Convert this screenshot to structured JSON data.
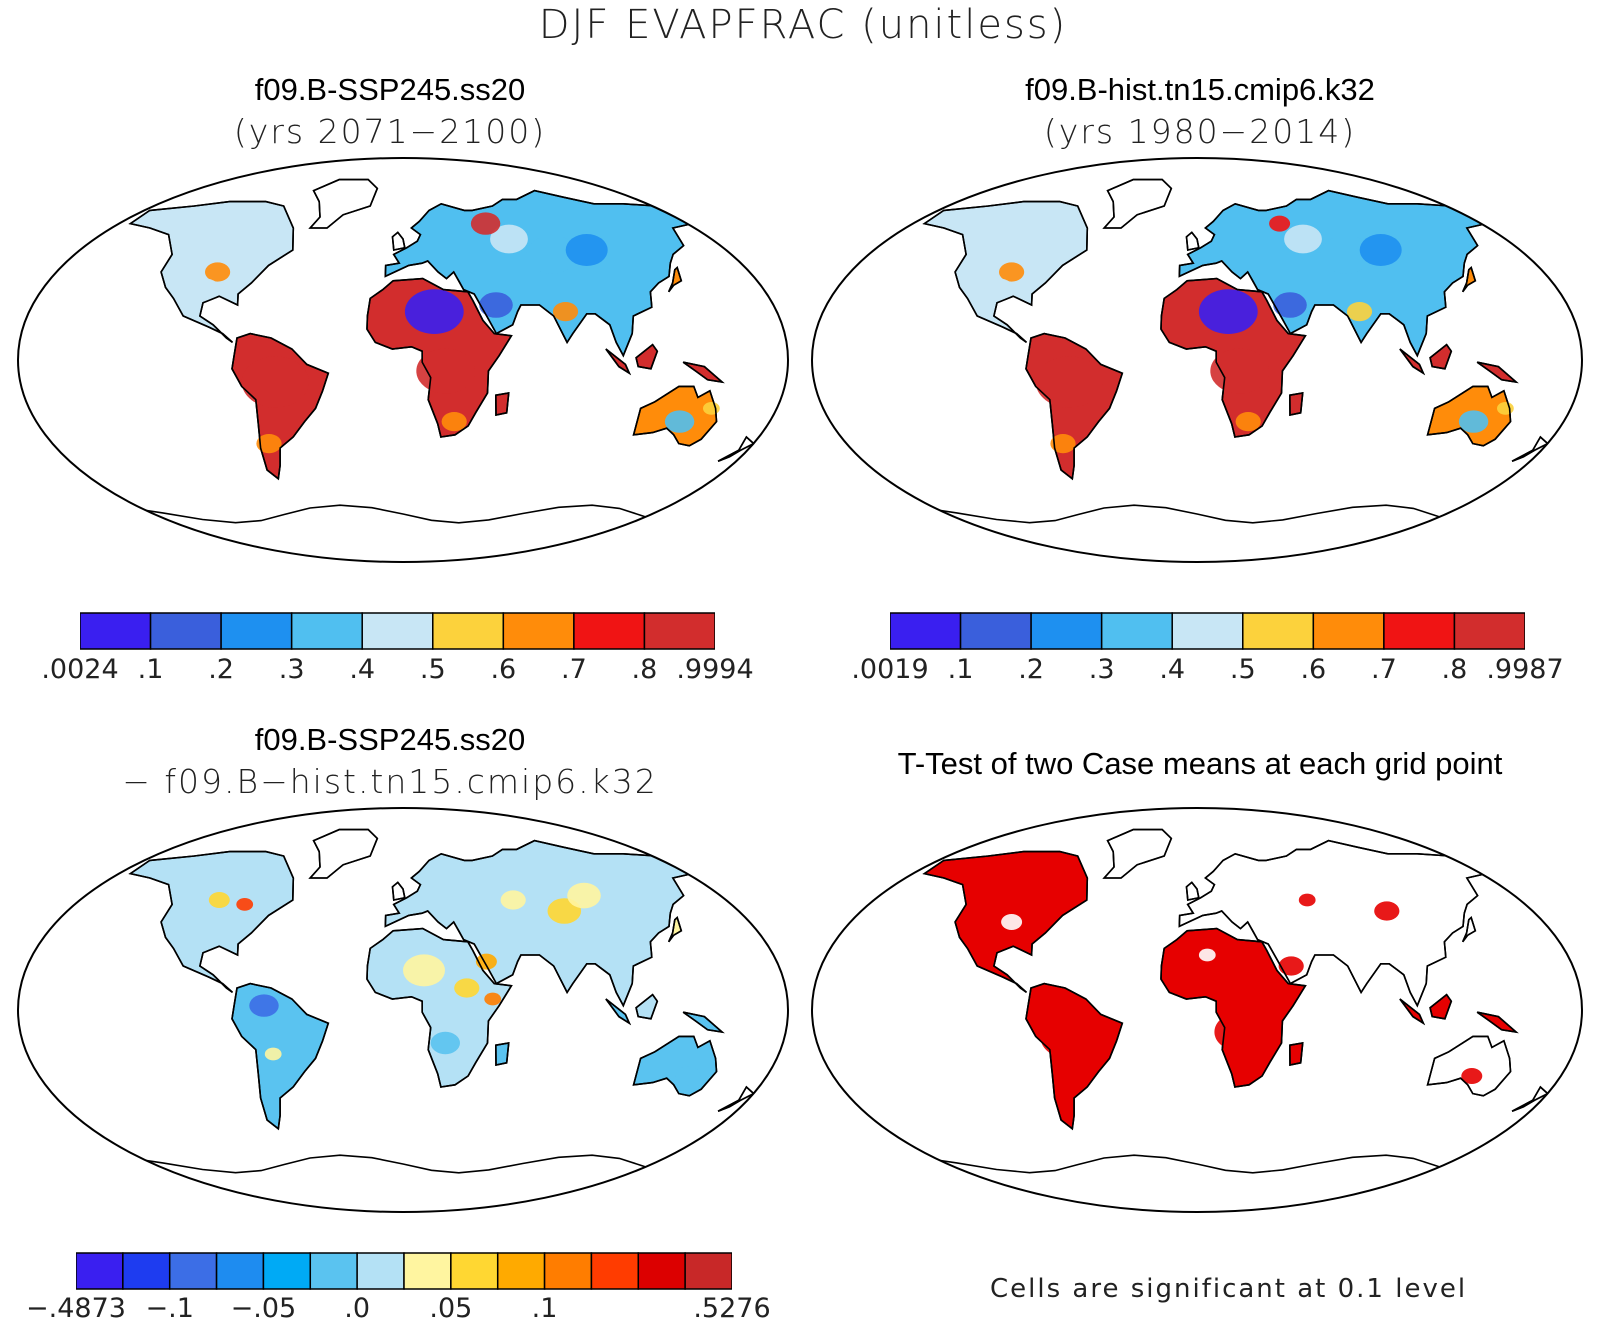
{
  "figure": {
    "title": "DJF EVAPFRAC (unitless)",
    "panels": [
      {
        "id": "ssp245",
        "title": "f09.B-SSP245.ss20",
        "subtitle": "(yrs 2071−2100)",
        "colorbar": {
          "colors": [
            "#3a1ff0",
            "#3a5fdc",
            "#1e90f0",
            "#50bff0",
            "#c8e6f5",
            "#fcd23c",
            "#ff8c0a",
            "#f01414",
            "#d22d2d"
          ],
          "ticks": [
            ".0024",
            ".1",
            ".2",
            ".3",
            ".4",
            ".5",
            ".6",
            ".7",
            ".8",
            ".9994"
          ]
        }
      },
      {
        "id": "hist",
        "title": "f09.B-hist.tn15.cmip6.k32",
        "subtitle": "(yrs 1980−2014)",
        "colorbar": {
          "colors": [
            "#3a1ff0",
            "#3a5fdc",
            "#1e90f0",
            "#50bff0",
            "#c8e6f5",
            "#fcd23c",
            "#ff8c0a",
            "#f01414",
            "#d22d2d"
          ],
          "ticks": [
            ".0019",
            ".1",
            ".2",
            ".3",
            ".4",
            ".5",
            ".6",
            ".7",
            ".8",
            ".9987"
          ]
        }
      },
      {
        "id": "diff",
        "title": "f09.B-SSP245.ss20",
        "subtitle": "− f09.B−hist.tn15.cmip6.k32",
        "colorbar": {
          "colors": [
            "#3a1ff0",
            "#1e3cf0",
            "#3c6ee6",
            "#1e8cf0",
            "#00aaf5",
            "#5ac3f0",
            "#b4e1f5",
            "#fff5a0",
            "#ffd732",
            "#ffaa00",
            "#ff7d00",
            "#ff3c00",
            "#dc0000",
            "#c82828"
          ],
          "ticks": [
            "−.4873",
            "−.1",
            "−.05",
            ".0",
            ".05",
            ".1",
            ".5276"
          ]
        }
      },
      {
        "id": "ttest",
        "title": "T-Test of two Case means at each grid point",
        "note": "Cells are significant at 0.1 level",
        "colors": {
          "significant": "#e60000"
        }
      }
    ]
  },
  "chart_data": [
    {
      "type": "heatmap",
      "title": "f09.B-SSP245.ss20",
      "subtitle": "(yrs 2071−2100)",
      "variable": "DJF EVAPFRAC (unitless)",
      "range": [
        0.0024,
        0.9994
      ],
      "levels": [
        0.1,
        0.2,
        0.3,
        0.4,
        0.5,
        0.6,
        0.7,
        0.8
      ]
    },
    {
      "type": "heatmap",
      "title": "f09.B-hist.tn15.cmip6.k32",
      "subtitle": "(yrs 1980−2014)",
      "variable": "DJF EVAPFRAC (unitless)",
      "range": [
        0.0019,
        0.9987
      ],
      "levels": [
        0.1,
        0.2,
        0.3,
        0.4,
        0.5,
        0.6,
        0.7,
        0.8
      ]
    },
    {
      "type": "heatmap",
      "title": "f09.B-SSP245.ss20 − f09.B−hist.tn15.cmip6.k32",
      "variable": "DJF EVAPFRAC (unitless)",
      "range": [
        -0.4873,
        0.5276
      ],
      "levels": [
        -0.1,
        -0.05,
        0.0,
        0.05,
        0.1
      ]
    },
    {
      "type": "heatmap",
      "title": "T-Test of two Case means at each grid point",
      "significance_level": 0.1
    }
  ]
}
